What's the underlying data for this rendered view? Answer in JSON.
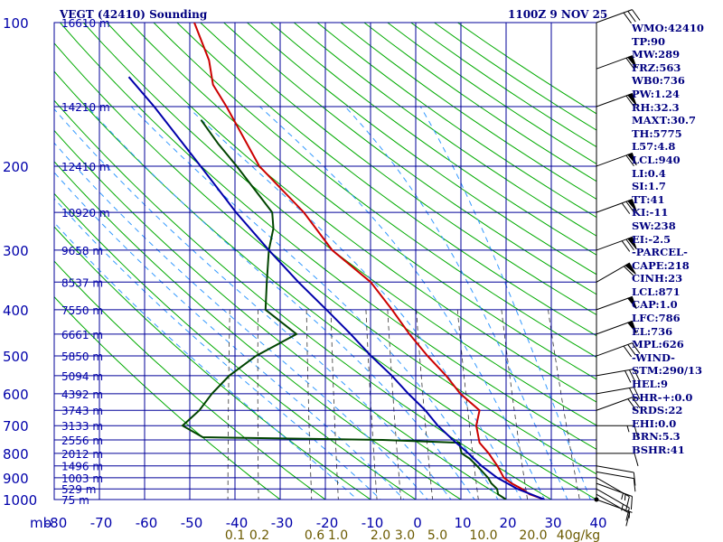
{
  "chart_data": {
    "type": "line",
    "title": "VEGT (42410) Sounding",
    "datetime": "1100Z  9 NOV 25",
    "pressure_unit_label": "mb",
    "pressure_levels": [
      100,
      200,
      300,
      400,
      500,
      600,
      700,
      800,
      900,
      1000
    ],
    "temperature_ticks": [
      -80,
      -70,
      -60,
      -50,
      -40,
      -30,
      -20,
      -10,
      0,
      10,
      20,
      30,
      40
    ],
    "mixing_ratio_labels": [
      "0.1",
      "0.2",
      "0.6",
      "1.0",
      "2.0",
      "3.0",
      "5.0",
      "10.0",
      "20.0",
      "40g/kg"
    ],
    "height_labels": [
      {
        "p": 100,
        "label": "16610 m"
      },
      {
        "p": 150,
        "label": "14210 m"
      },
      {
        "p": 200,
        "label": "12410 m"
      },
      {
        "p": 250,
        "label": "10920 m"
      },
      {
        "p": 300,
        "label": "9658 m"
      },
      {
        "p": 350,
        "label": "8537 m"
      },
      {
        "p": 400,
        "label": "7550 m"
      },
      {
        "p": 450,
        "label": "6661 m"
      },
      {
        "p": 500,
        "label": "5850 m"
      },
      {
        "p": 550,
        "label": "5094 m"
      },
      {
        "p": 600,
        "label": "4392 m"
      },
      {
        "p": 650,
        "label": "3743 m"
      },
      {
        "p": 700,
        "label": "3133 m"
      },
      {
        "p": 750,
        "label": "2556 m"
      },
      {
        "p": 800,
        "label": "2012 m"
      },
      {
        "p": 850,
        "label": "1496 m"
      },
      {
        "p": 900,
        "label": "1003 m"
      },
      {
        "p": 950,
        "label": "529 m"
      },
      {
        "p": 1000,
        "label": "75 m"
      }
    ],
    "series": [
      {
        "values": [
          [
            1000,
            28.5
          ],
          [
            975,
            25
          ],
          [
            950,
            23
          ],
          [
            925,
            20.5
          ],
          [
            900,
            18.5
          ],
          [
            850,
            16.5
          ],
          [
            800,
            14
          ],
          [
            760,
            11.5
          ],
          [
            700,
            10
          ],
          [
            650,
            10
          ],
          [
            600,
            5
          ],
          [
            550,
            1
          ],
          [
            500,
            -4
          ],
          [
            450,
            -9
          ],
          [
            400,
            -14
          ],
          [
            350,
            -20
          ],
          [
            300,
            -30
          ],
          [
            250,
            -38
          ],
          [
            200,
            -50
          ],
          [
            150,
            -60
          ],
          [
            135,
            -64
          ],
          [
            120,
            -66
          ],
          [
            100,
            -71
          ]
        ]
      },
      {
        "values": [
          [
            1000,
            20
          ],
          [
            975,
            18
          ],
          [
            950,
            17.5
          ],
          [
            925,
            16
          ],
          [
            900,
            15
          ],
          [
            850,
            12
          ],
          [
            820,
            10
          ],
          [
            800,
            8
          ],
          [
            760,
            7
          ],
          [
            750,
            -10
          ],
          [
            740,
            -50
          ],
          [
            700,
            -55
          ],
          [
            650,
            -52
          ],
          [
            600,
            -50
          ],
          [
            550,
            -47
          ],
          [
            500,
            -42
          ],
          [
            450,
            -34
          ],
          [
            400,
            -42
          ],
          [
            350,
            -43
          ],
          [
            300,
            -44
          ],
          [
            270,
            -44
          ],
          [
            250,
            -45
          ],
          [
            200,
            -55
          ],
          [
            180,
            -60
          ],
          [
            160,
            -65
          ]
        ]
      },
      {
        "values": [
          [
            1000,
            28.5
          ],
          [
            950,
            22
          ],
          [
            900,
            17
          ],
          [
            850,
            13
          ],
          [
            800,
            9.5
          ],
          [
            750,
            5.5
          ],
          [
            700,
            1.5
          ],
          [
            650,
            -2
          ],
          [
            600,
            -6.5
          ],
          [
            550,
            -11
          ],
          [
            500,
            -16.5
          ],
          [
            450,
            -22
          ],
          [
            400,
            -28.5
          ],
          [
            350,
            -36
          ],
          [
            300,
            -44
          ],
          [
            250,
            -53
          ],
          [
            200,
            -63
          ],
          [
            150,
            -76
          ],
          [
            130,
            -83
          ]
        ]
      }
    ],
    "winds": [
      {
        "p": 1000,
        "dir": 290,
        "spd": 5
      },
      {
        "p": 975,
        "dir": 300,
        "spd": 10
      },
      {
        "p": 950,
        "dir": 300,
        "spd": 15
      },
      {
        "p": 925,
        "dir": 290,
        "spd": 15
      },
      {
        "p": 900,
        "dir": 300,
        "spd": 15
      },
      {
        "p": 875,
        "dir": 280,
        "spd": 10
      },
      {
        "p": 850,
        "dir": 280,
        "spd": 10
      },
      {
        "p": 800,
        "dir": 270,
        "spd": 10
      },
      {
        "p": 700,
        "dir": 270,
        "spd": 15
      },
      {
        "p": 650,
        "dir": 250,
        "spd": 20
      },
      {
        "p": 600,
        "dir": 260,
        "spd": 20
      },
      {
        "p": 550,
        "dir": 260,
        "spd": 30
      },
      {
        "p": 500,
        "dir": 250,
        "spd": 30
      },
      {
        "p": 450,
        "dir": 250,
        "spd": 50
      },
      {
        "p": 400,
        "dir": 250,
        "spd": 50
      },
      {
        "p": 350,
        "dir": 240,
        "spd": 60
      },
      {
        "p": 300,
        "dir": 250,
        "spd": 70
      },
      {
        "p": 250,
        "dir": 250,
        "spd": 70
      },
      {
        "p": 200,
        "dir": 250,
        "spd": 60
      },
      {
        "p": 150,
        "dir": 250,
        "spd": 60
      },
      {
        "p": 125,
        "dir": 250,
        "spd": 60
      },
      {
        "p": 100,
        "dir": 250,
        "spd": 30
      }
    ],
    "axis_x_range": [
      -80,
      40
    ],
    "axis_p_range": [
      100,
      1000
    ],
    "log_pressure": true,
    "grid": true,
    "colors": {
      "background": "#ffffff",
      "grid": "#000099",
      "temperature": "#cc0000",
      "dewpoint": "#004400",
      "parcel": "#0000aa",
      "dry_adiabat": "#00aa00",
      "moist_adiabat": "#3399ff",
      "mixing_ratio": "#333333",
      "text": "#000080"
    }
  },
  "indices": [
    "WMO:42410",
    "TP:90",
    "MW:289",
    "FRZ:563",
    "WB0:736",
    "PW:1.24",
    "RH:32.3",
    "MAXT:30.7",
    "TH:5775",
    "L57:4.8",
    "LCL:940",
    "LI:0.4",
    "SI:1.7",
    "TT:41",
    "KI:-11",
    "SW:238",
    "EI:-2.5",
    "-PARCEL-",
    "CAPE:218",
    "CINH:23",
    "LCL:871",
    "CAP:1.0",
    "LFC:786",
    "EL:736",
    "MPL:626",
    "-WIND-",
    "STM:290/13",
    "HEL:9",
    "SHR-+:0.0",
    "SRDS:22",
    "EHI:0.0",
    "BRN:5.3",
    "BSHR:41"
  ]
}
